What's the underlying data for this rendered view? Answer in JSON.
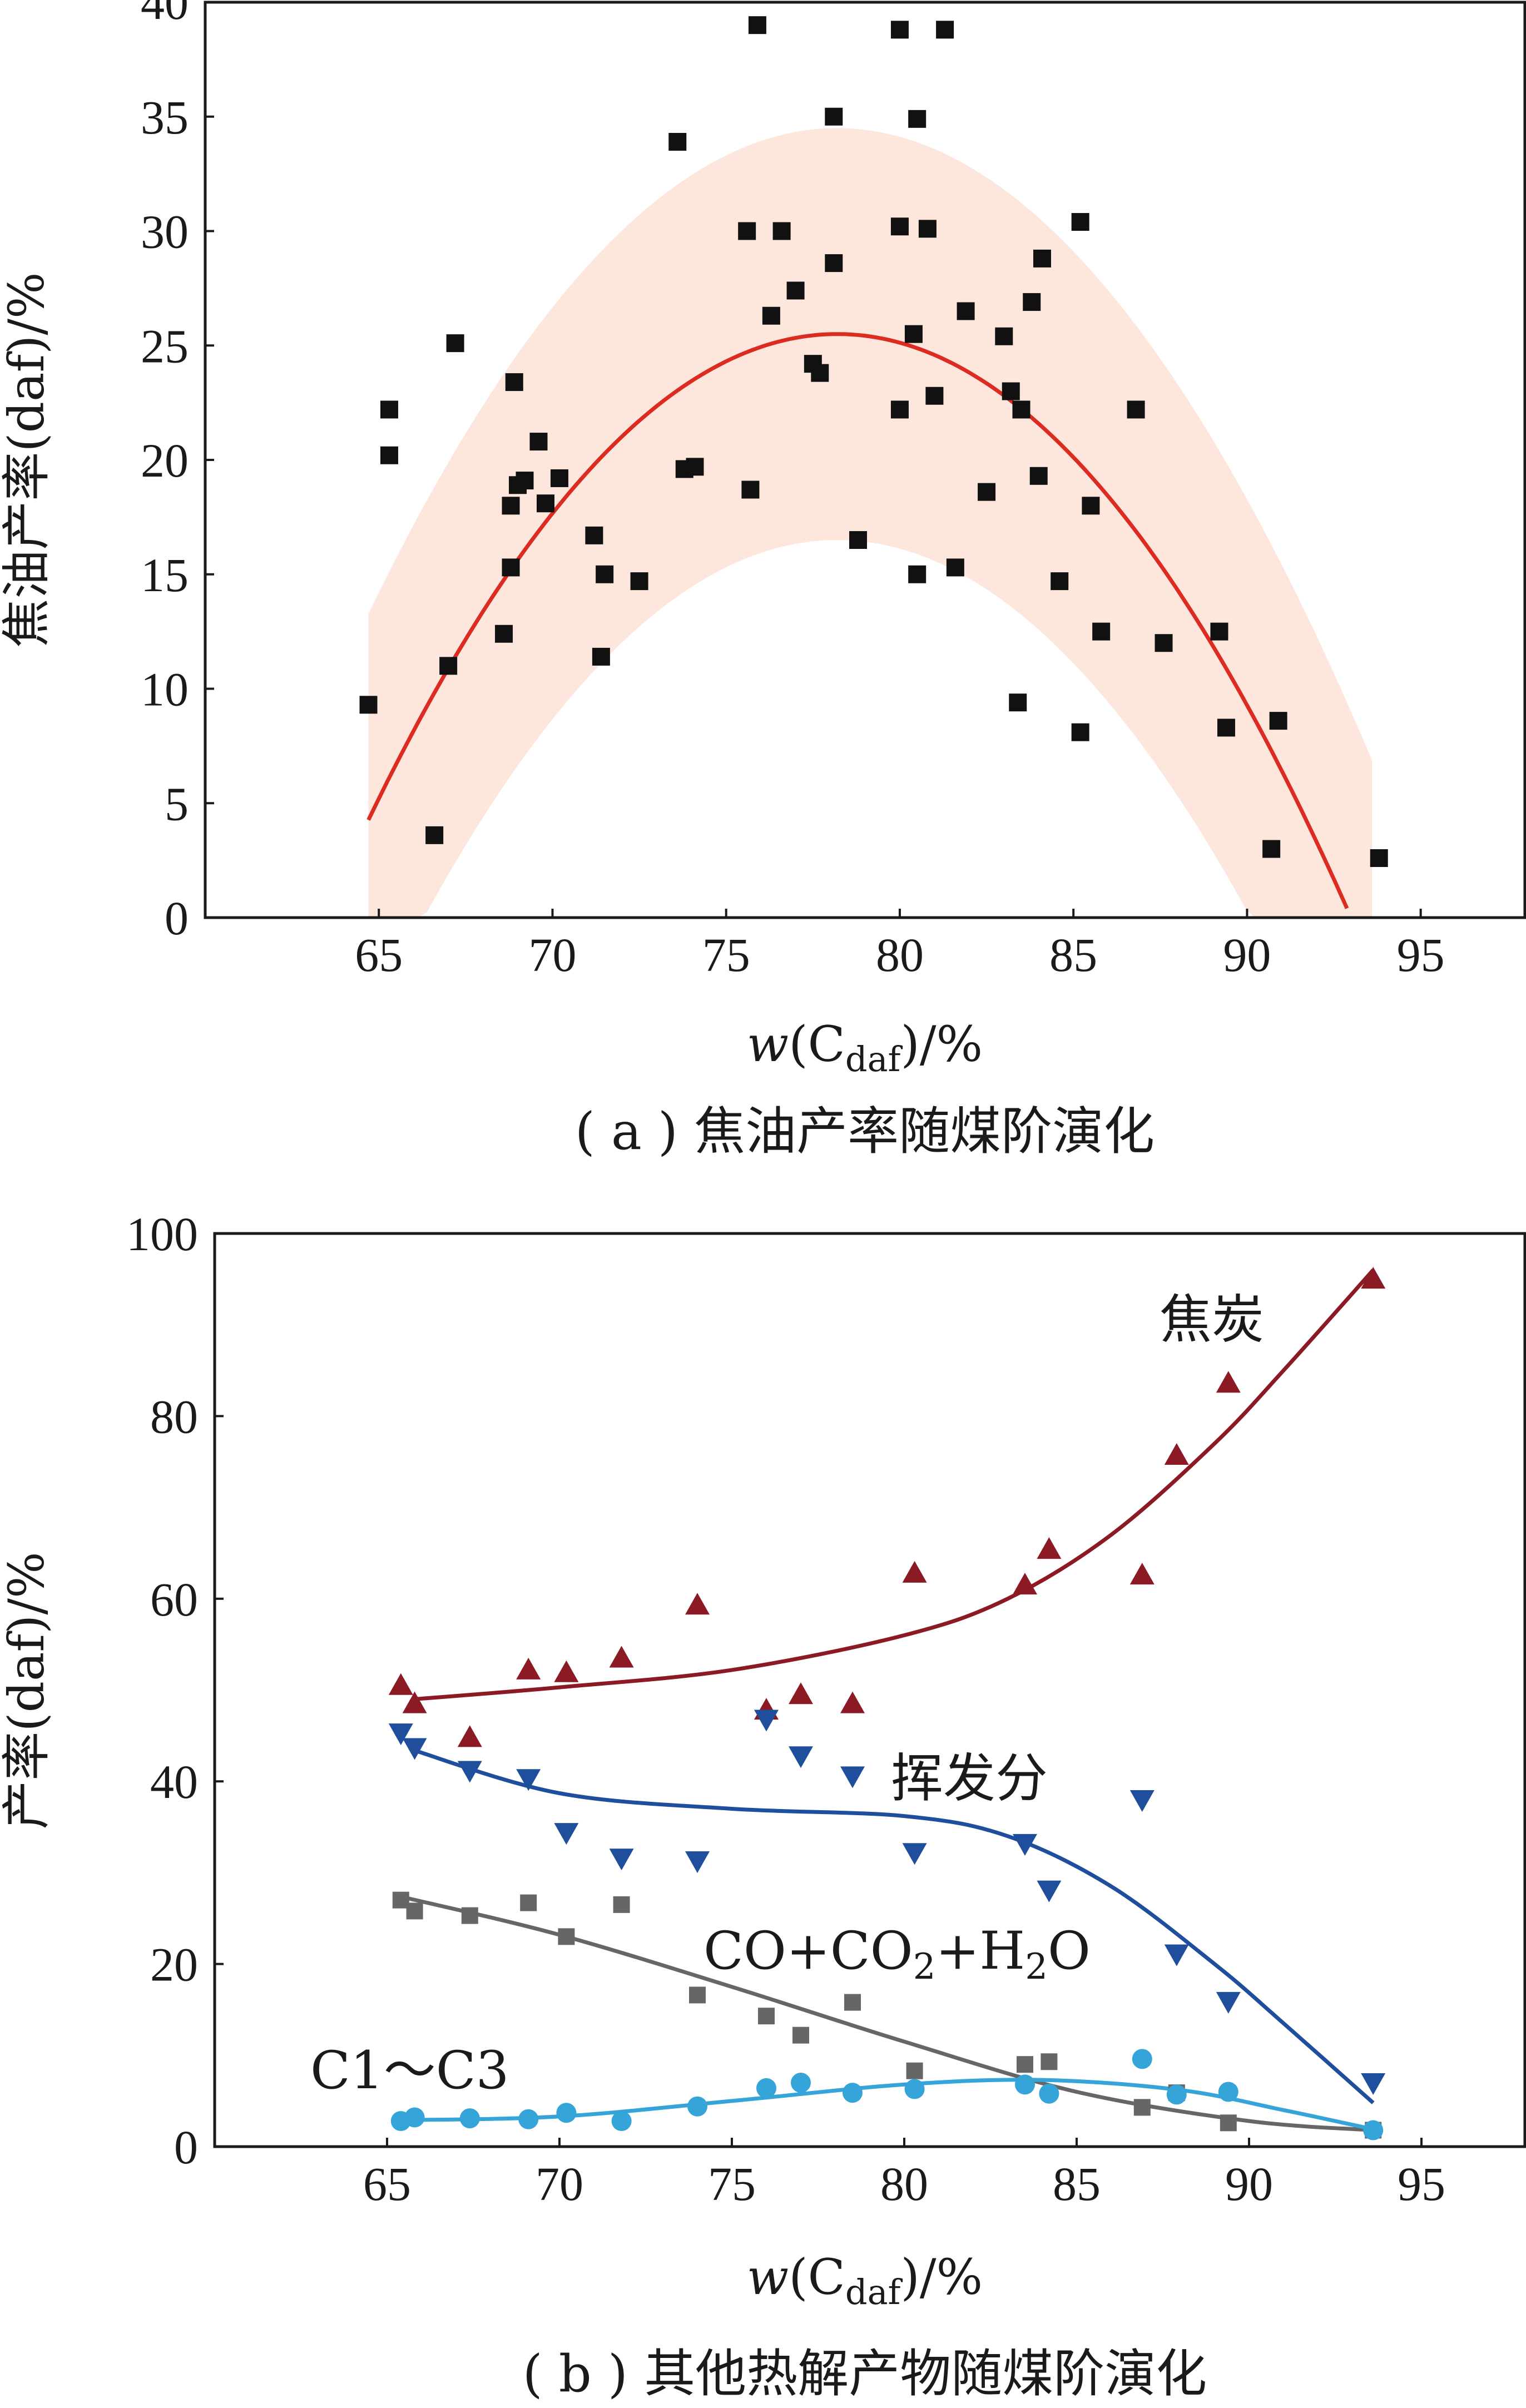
{
  "chart_data": [
    {
      "type": "scatter",
      "panel": "a",
      "caption": "( a ) 焦油产率随煤阶演化",
      "xlabel": {
        "prefix": "w(C",
        "sub": "daf",
        "suffix": ")/%"
      },
      "ylabel": "焦油产率(daf)/%",
      "xlim": [
        60,
        98
      ],
      "ylim": [
        0,
        40
      ],
      "xticks": [
        "65",
        "70",
        "75",
        "80",
        "85",
        "90",
        "95"
      ],
      "yticks": [
        "0",
        "5",
        "10",
        "15",
        "20",
        "25",
        "30",
        "35",
        "40"
      ],
      "colors": {
        "points": "#111111",
        "fit": "#dc2b20",
        "band": "#fde6dc"
      },
      "points": [
        [
          64.7,
          9.3
        ],
        [
          65.3,
          22.2
        ],
        [
          65.3,
          20.2
        ],
        [
          66.6,
          3.6
        ],
        [
          67.0,
          11.0
        ],
        [
          67.2,
          25.1
        ],
        [
          68.6,
          12.4
        ],
        [
          68.8,
          15.3
        ],
        [
          68.8,
          18.0
        ],
        [
          68.9,
          23.4
        ],
        [
          69.0,
          18.9
        ],
        [
          69.2,
          19.1
        ],
        [
          69.6,
          20.8
        ],
        [
          69.8,
          18.1
        ],
        [
          70.2,
          19.2
        ],
        [
          71.2,
          16.7
        ],
        [
          71.4,
          11.4
        ],
        [
          71.5,
          15.0
        ],
        [
          72.5,
          14.7
        ],
        [
          73.6,
          33.9
        ],
        [
          73.8,
          19.6
        ],
        [
          74.1,
          19.7
        ],
        [
          75.6,
          30.0
        ],
        [
          75.7,
          18.7
        ],
        [
          75.9,
          39.0
        ],
        [
          76.3,
          26.3
        ],
        [
          76.6,
          30.0
        ],
        [
          77.0,
          27.4
        ],
        [
          77.5,
          24.2
        ],
        [
          77.7,
          23.8
        ],
        [
          78.1,
          35.0
        ],
        [
          78.1,
          28.6
        ],
        [
          78.8,
          16.5
        ],
        [
          80.0,
          38.8
        ],
        [
          80.0,
          30.2
        ],
        [
          80.0,
          22.2
        ],
        [
          80.4,
          25.5
        ],
        [
          80.5,
          15.0
        ],
        [
          80.5,
          34.9
        ],
        [
          80.8,
          30.1
        ],
        [
          81.0,
          22.8
        ],
        [
          81.3,
          38.8
        ],
        [
          81.6,
          15.3
        ],
        [
          81.9,
          26.5
        ],
        [
          82.5,
          18.6
        ],
        [
          83.0,
          25.4
        ],
        [
          83.2,
          23.0
        ],
        [
          83.4,
          9.4
        ],
        [
          83.5,
          22.2
        ],
        [
          83.8,
          26.9
        ],
        [
          84.0,
          19.3
        ],
        [
          84.1,
          28.8
        ],
        [
          84.6,
          14.7
        ],
        [
          85.2,
          30.4
        ],
        [
          85.2,
          8.1
        ],
        [
          85.5,
          18.0
        ],
        [
          85.8,
          12.5
        ],
        [
          86.8,
          22.2
        ],
        [
          87.6,
          12.0
        ],
        [
          89.2,
          12.5
        ],
        [
          89.4,
          8.3
        ],
        [
          90.7,
          3.0
        ],
        [
          90.9,
          8.6
        ],
        [
          93.8,
          2.6
        ]
      ],
      "fit": {
        "model": "quadratic",
        "vertex_x": 78.2,
        "vertex_y": 25.5,
        "a": -0.1165,
        "x_range": [
          64.7,
          93.6
        ]
      },
      "band": {
        "half_width": 9.0,
        "x_range": [
          64.7,
          93.6
        ]
      }
    },
    {
      "type": "scatter",
      "panel": "b",
      "caption": "( b ) 其他热解产物随煤阶演化",
      "xlabel": {
        "prefix": "w(C",
        "sub": "daf",
        "suffix": ")/%"
      },
      "ylabel": "产率(daf)/%",
      "xlim": [
        60,
        98
      ],
      "ylim": [
        0,
        100
      ],
      "xticks": [
        "65",
        "70",
        "75",
        "80",
        "85",
        "90",
        "95"
      ],
      "yticks": [
        "0",
        "20",
        "40",
        "60",
        "80",
        "100"
      ],
      "series": [
        {
          "name": "焦炭",
          "marker": "triangle-up",
          "color": "#8b1a24",
          "points": [
            [
              65.4,
              50.5
            ],
            [
              65.8,
              48.5
            ],
            [
              67.4,
              44.8
            ],
            [
              69.1,
              52.2
            ],
            [
              70.2,
              51.9
            ],
            [
              71.8,
              53.5
            ],
            [
              74.0,
              59.3
            ],
            [
              76.0,
              47.8
            ],
            [
              77.0,
              49.5
            ],
            [
              78.5,
              48.5
            ],
            [
              80.3,
              62.8
            ],
            [
              83.5,
              61.5
            ],
            [
              84.2,
              65.4
            ],
            [
              86.9,
              62.6
            ],
            [
              87.9,
              75.7
            ],
            [
              89.4,
              83.6
            ],
            [
              93.6,
              95.0
            ]
          ],
          "fit": [
            [
              65.8,
              49.0
            ],
            [
              70.0,
              50.3
            ],
            [
              75.0,
              52.2
            ],
            [
              80.0,
              56.0
            ],
            [
              83.0,
              60.0
            ],
            [
              86.0,
              67.0
            ],
            [
              89.0,
              77.0
            ],
            [
              91.0,
              85.0
            ],
            [
              93.6,
              96.0
            ]
          ]
        },
        {
          "name": "挥发分",
          "marker": "triangle-down",
          "color": "#1f4e9c",
          "points": [
            [
              65.4,
              45.3
            ],
            [
              65.8,
              43.7
            ],
            [
              67.4,
              41.2
            ],
            [
              69.1,
              40.3
            ],
            [
              70.2,
              34.4
            ],
            [
              71.8,
              31.6
            ],
            [
              74.0,
              31.3
            ],
            [
              76.0,
              46.8
            ],
            [
              77.0,
              42.8
            ],
            [
              78.5,
              40.6
            ],
            [
              80.3,
              32.2
            ],
            [
              83.5,
              33.2
            ],
            [
              84.2,
              28.1
            ],
            [
              86.9,
              38.0
            ],
            [
              87.9,
              21.1
            ],
            [
              89.4,
              15.9
            ],
            [
              93.6,
              7.0
            ]
          ],
          "fit": [
            [
              65.7,
              43.5
            ],
            [
              70.0,
              38.7
            ],
            [
              75.0,
              37.0
            ],
            [
              80.0,
              36.2
            ],
            [
              83.0,
              34.0
            ],
            [
              86.0,
              28.5
            ],
            [
              89.0,
              20.0
            ],
            [
              91.0,
              13.5
            ],
            [
              93.6,
              4.8
            ]
          ]
        },
        {
          "name": "CO+CO₂+H₂O",
          "label_parts": [
            "CO+CO",
            "2",
            "+H",
            "2",
            "O"
          ],
          "marker": "square",
          "color": "#666666",
          "points": [
            [
              65.4,
              27.0
            ],
            [
              65.8,
              25.8
            ],
            [
              67.4,
              25.3
            ],
            [
              69.1,
              26.7
            ],
            [
              70.2,
              23.0
            ],
            [
              71.8,
              26.5
            ],
            [
              74.0,
              16.6
            ],
            [
              76.0,
              14.3
            ],
            [
              77.0,
              12.2
            ],
            [
              78.5,
              15.8
            ],
            [
              80.3,
              8.3
            ],
            [
              83.5,
              9.0
            ],
            [
              84.2,
              9.3
            ],
            [
              86.9,
              4.3
            ],
            [
              87.9,
              5.9
            ],
            [
              89.4,
              2.6
            ],
            [
              93.6,
              1.8
            ]
          ],
          "fit": [
            [
              65.6,
              27.2
            ],
            [
              70.0,
              23.2
            ],
            [
              75.0,
              17.5
            ],
            [
              80.0,
              11.5
            ],
            [
              85.0,
              6.0
            ],
            [
              90.0,
              2.8
            ],
            [
              93.6,
              1.8
            ]
          ]
        },
        {
          "name": "C1～C3",
          "marker": "circle",
          "color": "#35a4d8",
          "points": [
            [
              65.4,
              2.8
            ],
            [
              65.8,
              3.2
            ],
            [
              67.4,
              3.1
            ],
            [
              69.1,
              3.0
            ],
            [
              70.2,
              3.7
            ],
            [
              71.8,
              2.8
            ],
            [
              74.0,
              4.4
            ],
            [
              76.0,
              6.4
            ],
            [
              77.0,
              7.0
            ],
            [
              78.5,
              5.9
            ],
            [
              80.3,
              6.3
            ],
            [
              83.5,
              6.8
            ],
            [
              84.2,
              5.8
            ],
            [
              86.9,
              9.6
            ],
            [
              87.9,
              5.7
            ],
            [
              89.4,
              6.0
            ],
            [
              93.6,
              1.8
            ]
          ],
          "fit": [
            [
              65.4,
              2.9
            ],
            [
              70.0,
              3.3
            ],
            [
              75.0,
              5.0
            ],
            [
              80.0,
              6.8
            ],
            [
              84.0,
              7.3
            ],
            [
              88.0,
              6.2
            ],
            [
              91.0,
              4.0
            ],
            [
              93.6,
              1.9
            ]
          ]
        }
      ]
    }
  ]
}
